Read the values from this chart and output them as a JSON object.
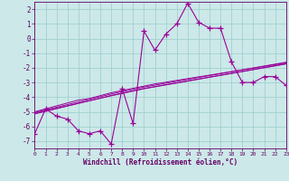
{
  "x": [
    0,
    1,
    2,
    3,
    4,
    5,
    6,
    7,
    8,
    9,
    10,
    11,
    12,
    13,
    14,
    15,
    16,
    17,
    18,
    19,
    20,
    21,
    22,
    23
  ],
  "main_line": [
    -6.5,
    -4.8,
    -5.3,
    -5.5,
    -6.3,
    -6.5,
    -6.3,
    -7.2,
    -3.4,
    -5.8,
    0.5,
    -0.8,
    0.3,
    1.0,
    2.4,
    1.1,
    0.7,
    0.7,
    -1.6,
    -3.0,
    -3.0,
    -2.6,
    -2.6,
    -3.2
  ],
  "trend_lines": [
    [
      -5.0,
      -4.8,
      -4.6,
      -4.4,
      -4.2,
      -4.1,
      -3.9,
      -3.7,
      -3.55,
      -3.4,
      -3.25,
      -3.1,
      -2.98,
      -2.86,
      -2.74,
      -2.62,
      -2.5,
      -2.38,
      -2.26,
      -2.14,
      -2.02,
      -1.9,
      -1.78,
      -1.66
    ],
    [
      -5.05,
      -4.87,
      -4.69,
      -4.51,
      -4.33,
      -4.15,
      -3.97,
      -3.79,
      -3.63,
      -3.47,
      -3.31,
      -3.18,
      -3.05,
      -2.92,
      -2.79,
      -2.66,
      -2.53,
      -2.4,
      -2.27,
      -2.14,
      -2.01,
      -1.88,
      -1.75,
      -1.62
    ],
    [
      -5.1,
      -4.93,
      -4.76,
      -4.59,
      -4.42,
      -4.25,
      -4.08,
      -3.91,
      -3.75,
      -3.59,
      -3.43,
      -3.3,
      -3.17,
      -3.04,
      -2.91,
      -2.78,
      -2.65,
      -2.52,
      -2.39,
      -2.26,
      -2.13,
      -2.0,
      -1.87,
      -1.74
    ],
    [
      -5.15,
      -4.97,
      -4.79,
      -4.61,
      -4.43,
      -4.25,
      -4.07,
      -3.89,
      -3.73,
      -3.57,
      -3.41,
      -3.28,
      -3.15,
      -3.02,
      -2.89,
      -2.76,
      -2.63,
      -2.5,
      -2.37,
      -2.24,
      -2.11,
      -1.98,
      -1.85,
      -1.72
    ]
  ],
  "line_color": "#990099",
  "bg_color": "#cce8e8",
  "grid_color": "#99cccc",
  "axis_color": "#660066",
  "xlim": [
    0,
    23
  ],
  "ylim": [
    -7.5,
    2.5
  ],
  "yticks": [
    -7,
    -6,
    -5,
    -4,
    -3,
    -2,
    -1,
    0,
    1,
    2
  ],
  "xticks": [
    0,
    1,
    2,
    3,
    4,
    5,
    6,
    7,
    8,
    9,
    10,
    11,
    12,
    13,
    14,
    15,
    16,
    17,
    18,
    19,
    20,
    21,
    22,
    23
  ],
  "xlabel": "Windchill (Refroidissement éolien,°C)",
  "marker": "+",
  "marker_size": 4,
  "lw": 0.8
}
